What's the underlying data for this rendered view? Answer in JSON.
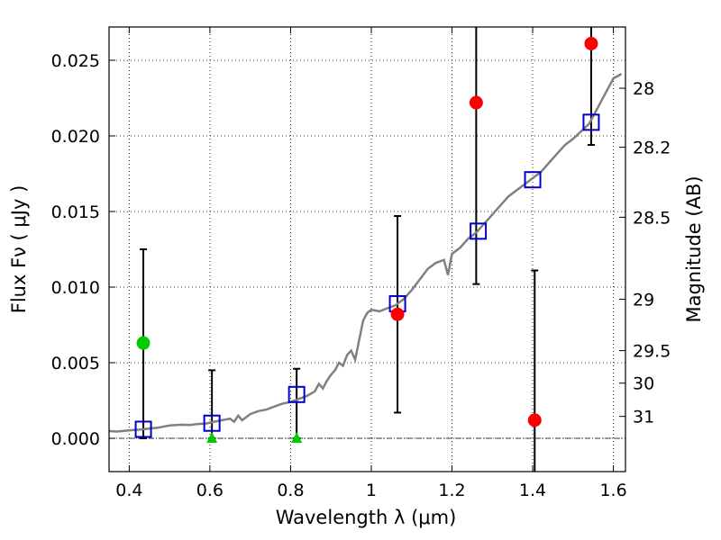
{
  "chart_data": {
    "type": "scatter",
    "xlabel": "Wavelength  λ (μm)",
    "ylabel": "Flux  Fν  ( μJy )",
    "ylabel_right": "Magnitude (AB)",
    "xlim": [
      0.35,
      1.63
    ],
    "ylim": [
      -0.0022,
      0.0272
    ],
    "grid": true,
    "x_ticks": [
      {
        "value": 0.4,
        "label": "0.4"
      },
      {
        "value": 0.6,
        "label": "0.6"
      },
      {
        "value": 0.8,
        "label": "0.8"
      },
      {
        "value": 1.0,
        "label": "1"
      },
      {
        "value": 1.2,
        "label": "1.2"
      },
      {
        "value": 1.4,
        "label": "1.4"
      },
      {
        "value": 1.6,
        "label": "1.6"
      }
    ],
    "y_ticks": [
      {
        "value": 0.0,
        "label": "0.000"
      },
      {
        "value": 0.005,
        "label": "0.005"
      },
      {
        "value": 0.01,
        "label": "0.010"
      },
      {
        "value": 0.015,
        "label": "0.015"
      },
      {
        "value": 0.02,
        "label": "0.020"
      },
      {
        "value": 0.025,
        "label": "0.025"
      }
    ],
    "right_ticks": [
      {
        "flux": 0.02315,
        "label": "28"
      },
      {
        "flux": 0.01925,
        "label": "28.2"
      },
      {
        "flux": 0.01462,
        "label": "28.5"
      },
      {
        "flux": 0.0092,
        "label": "29"
      },
      {
        "flux": 0.0058,
        "label": "29.5"
      },
      {
        "flux": 0.00365,
        "label": "30"
      },
      {
        "flux": 0.00145,
        "label": "31"
      }
    ],
    "series": [
      {
        "marker": "line",
        "color": "#808080",
        "points": [
          [
            0.35,
            0.00048
          ],
          [
            0.37,
            0.00045
          ],
          [
            0.39,
            0.0005
          ],
          [
            0.41,
            0.00055
          ],
          [
            0.43,
            0.00058
          ],
          [
            0.45,
            0.00065
          ],
          [
            0.47,
            0.0007
          ],
          [
            0.5,
            0.00085
          ],
          [
            0.53,
            0.0009
          ],
          [
            0.55,
            0.00088
          ],
          [
            0.57,
            0.00095
          ],
          [
            0.59,
            0.00098
          ],
          [
            0.61,
            0.0011
          ],
          [
            0.63,
            0.0012
          ],
          [
            0.65,
            0.0013
          ],
          [
            0.66,
            0.0011
          ],
          [
            0.67,
            0.0015
          ],
          [
            0.68,
            0.0012
          ],
          [
            0.7,
            0.0016
          ],
          [
            0.72,
            0.0018
          ],
          [
            0.74,
            0.0019
          ],
          [
            0.76,
            0.0021
          ],
          [
            0.78,
            0.0023
          ],
          [
            0.8,
            0.0024
          ],
          [
            0.82,
            0.0026
          ],
          [
            0.84,
            0.0028
          ],
          [
            0.86,
            0.0031
          ],
          [
            0.87,
            0.0036
          ],
          [
            0.88,
            0.0033
          ],
          [
            0.89,
            0.0038
          ],
          [
            0.9,
            0.0042
          ],
          [
            0.91,
            0.0045
          ],
          [
            0.92,
            0.005
          ],
          [
            0.93,
            0.0048
          ],
          [
            0.94,
            0.0055
          ],
          [
            0.95,
            0.0058
          ],
          [
            0.96,
            0.0052
          ],
          [
            0.97,
            0.0065
          ],
          [
            0.98,
            0.0078
          ],
          [
            0.99,
            0.0083
          ],
          [
            1.0,
            0.0085
          ],
          [
            1.02,
            0.0084
          ],
          [
            1.04,
            0.0086
          ],
          [
            1.06,
            0.0088
          ],
          [
            1.08,
            0.0092
          ],
          [
            1.1,
            0.0098
          ],
          [
            1.12,
            0.0105
          ],
          [
            1.14,
            0.0112
          ],
          [
            1.16,
            0.0116
          ],
          [
            1.18,
            0.0118
          ],
          [
            1.19,
            0.0108
          ],
          [
            1.2,
            0.0122
          ],
          [
            1.22,
            0.0126
          ],
          [
            1.24,
            0.0132
          ],
          [
            1.26,
            0.0136
          ],
          [
            1.28,
            0.0142
          ],
          [
            1.3,
            0.0148
          ],
          [
            1.32,
            0.0154
          ],
          [
            1.34,
            0.016
          ],
          [
            1.36,
            0.0164
          ],
          [
            1.38,
            0.0168
          ],
          [
            1.4,
            0.0172
          ],
          [
            1.42,
            0.0176
          ],
          [
            1.44,
            0.0182
          ],
          [
            1.46,
            0.0188
          ],
          [
            1.48,
            0.0194
          ],
          [
            1.5,
            0.0198
          ],
          [
            1.52,
            0.0203
          ],
          [
            1.54,
            0.0208
          ],
          [
            1.56,
            0.0218
          ],
          [
            1.58,
            0.0228
          ],
          [
            1.6,
            0.0238
          ],
          [
            1.62,
            0.0241
          ]
        ]
      },
      {
        "marker": "open-square",
        "color": "#0000cc",
        "points": [
          [
            0.435,
            0.0006
          ],
          [
            0.605,
            0.001
          ],
          [
            0.815,
            0.0029
          ],
          [
            1.065,
            0.0089
          ],
          [
            1.265,
            0.0137
          ],
          [
            1.4,
            0.0171
          ],
          [
            1.545,
            0.0209
          ]
        ]
      },
      {
        "marker": "filled-circle",
        "color": "#ff0000",
        "points": [
          [
            1.065,
            0.0082
          ],
          [
            1.26,
            0.0222
          ],
          [
            1.405,
            0.0012
          ],
          [
            1.545,
            0.0261
          ]
        ]
      },
      {
        "marker": "filled-circle",
        "color": "#00cc00",
        "points": [
          [
            0.435,
            0.0063
          ]
        ]
      },
      {
        "marker": "triangle",
        "color": "#00cc00",
        "points": [
          [
            0.605,
            0.0
          ],
          [
            0.815,
            0.0
          ]
        ]
      }
    ],
    "error_bars": [
      {
        "x": 0.435,
        "low": 0.0,
        "high": 0.0125
      },
      {
        "x": 0.605,
        "low": 0.0,
        "high": 0.0045
      },
      {
        "x": 0.815,
        "low": 0.0,
        "high": 0.0046
      },
      {
        "x": 1.065,
        "low": 0.0017,
        "high": 0.0147
      },
      {
        "x": 1.26,
        "low": 0.0102,
        "high": 0.0272
      },
      {
        "x": 1.405,
        "low": -0.0022,
        "high": 0.0111
      },
      {
        "x": 1.545,
        "low": 0.0194,
        "high": 0.0272
      }
    ]
  }
}
